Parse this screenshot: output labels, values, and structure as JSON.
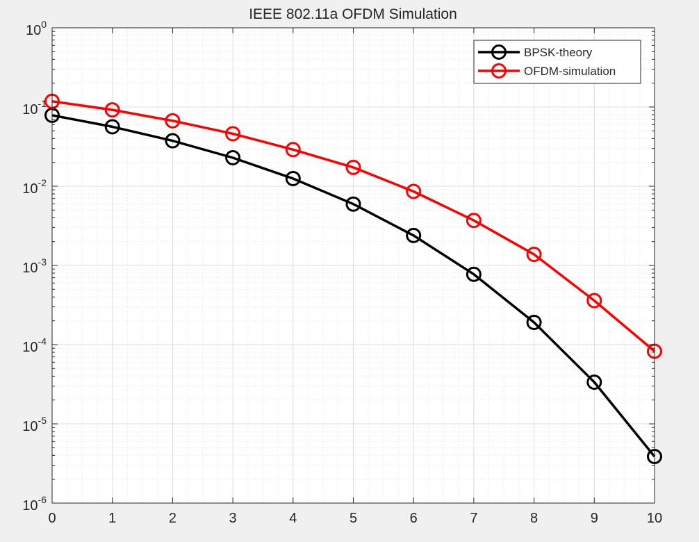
{
  "chart_data": {
    "type": "line",
    "title": "IEEE 802.11a OFDM Simulation",
    "xlabel": "",
    "ylabel": "",
    "x": [
      0,
      1,
      2,
      3,
      4,
      5,
      6,
      7,
      8,
      9,
      10
    ],
    "xlim": [
      0,
      10
    ],
    "ylim": [
      1e-06,
      1
    ],
    "yscale": "log",
    "x_tick_labels": [
      "0",
      "1",
      "2",
      "3",
      "4",
      "5",
      "6",
      "7",
      "8",
      "9",
      "10"
    ],
    "y_tick_labels": [
      {
        "base": "10",
        "exp": "-6"
      },
      {
        "base": "10",
        "exp": "-5"
      },
      {
        "base": "10",
        "exp": "-4"
      },
      {
        "base": "10",
        "exp": "-3"
      },
      {
        "base": "10",
        "exp": "-2"
      },
      {
        "base": "10",
        "exp": "-1"
      },
      {
        "base": "10",
        "exp": "0"
      }
    ],
    "grid": true,
    "minor_grid": true,
    "legend_position": "top-right",
    "marker": "circle",
    "series": [
      {
        "name": "BPSK-theory",
        "color": "#000000",
        "values": [
          0.0786,
          0.0563,
          0.0375,
          0.0229,
          0.0125,
          0.00595,
          0.00239,
          0.000773,
          0.000191,
          3.36e-05,
          3.87e-06
        ]
      },
      {
        "name": "OFDM-simulation",
        "color": "#ff0000",
        "values": [
          0.118,
          0.092,
          0.067,
          0.046,
          0.029,
          0.0173,
          0.0086,
          0.0037,
          0.00138,
          0.00036,
          8.25e-05
        ]
      }
    ]
  }
}
